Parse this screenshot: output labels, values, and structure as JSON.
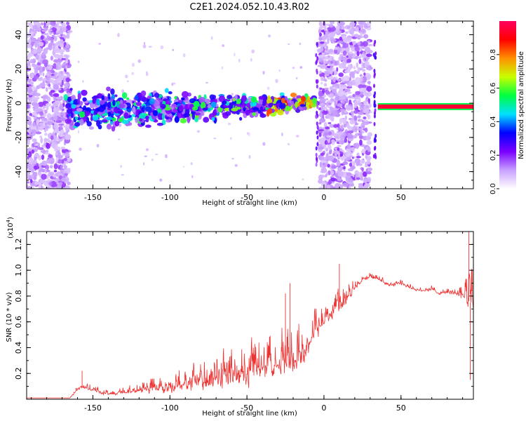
{
  "title": "C2E1.2024.052.10.43.R02",
  "chart_data": [
    {
      "type": "heatmap",
      "xlabel": "Height of straight line (km)",
      "ylabel": "Frequency (Hz)",
      "xlim": [
        -193,
        97
      ],
      "ylim": [
        -50,
        48
      ],
      "xticks": [
        "-150",
        "-100",
        "-50",
        "0",
        "50"
      ],
      "xtick_values": [
        -150,
        -100,
        -50,
        0,
        50
      ],
      "yticks": [
        "-40",
        "-20",
        "0",
        "20",
        "40"
      ],
      "ytick_values": [
        -40,
        -20,
        0,
        20,
        40
      ],
      "colorbar": {
        "label": "Normalized spectral amplitude",
        "range": [
          0,
          1
        ],
        "ticks": [
          "0.0",
          "0.2",
          "0.4",
          "0.6",
          "0.8"
        ],
        "tick_values": [
          0.0,
          0.2,
          0.4,
          0.6,
          0.8
        ],
        "colormap": [
          "#ffffff",
          "#c8a0ff",
          "#7a00ff",
          "#0000ff",
          "#00e0ff",
          "#00ff40",
          "#c8ff00",
          "#ff9000",
          "#ff0000",
          "#ff0060"
        ]
      },
      "features": {
        "noise_blocks_km": [
          [
            -193,
            -165
          ],
          [
            -3,
            30
          ]
        ],
        "signal_band": {
          "x_km": [
            -168,
            -5
          ],
          "center_hz_at_start": -5,
          "center_hz_at_end": 0,
          "halfwidth_hz_at_start": 10,
          "halfwidth_hz_at_end": 3
        },
        "strong_line": {
          "x_km": [
            35,
            97
          ],
          "freq_hz": -2,
          "peak_amplitude": 0.95
        }
      }
    },
    {
      "type": "line",
      "xlabel": "Height of straight line (km)",
      "ylabel": "SNR (10 * v/v)",
      "y_multiplier": "(x10⁴)",
      "y_exponent": "4",
      "xlim": [
        -193,
        97
      ],
      "ylim": [
        0,
        1.3
      ],
      "xticks": [
        "-150",
        "-100",
        "-50",
        "0",
        "50"
      ],
      "xtick_values": [
        -150,
        -100,
        -50,
        0,
        50
      ],
      "yticks": [
        "0.2",
        "0.4",
        "0.6",
        "0.8",
        "1.0",
        "1.2"
      ],
      "ytick_values": [
        0.2,
        0.4,
        0.6,
        0.8,
        1.0,
        1.2
      ],
      "color": "#ee3333",
      "envelope": {
        "x": [
          -193,
          -165,
          -158,
          -150,
          -140,
          -130,
          -120,
          -110,
          -100,
          -90,
          -80,
          -70,
          -60,
          -50,
          -40,
          -30,
          -20,
          -15,
          -10,
          -5,
          0,
          5,
          10,
          15,
          20,
          25,
          30,
          35,
          40,
          45,
          50,
          55,
          60,
          65,
          70,
          75,
          80,
          85,
          90,
          95,
          97
        ],
        "base": [
          0.01,
          0.01,
          0.1,
          0.07,
          0.04,
          0.05,
          0.07,
          0.09,
          0.1,
          0.12,
          0.14,
          0.15,
          0.18,
          0.2,
          0.24,
          0.27,
          0.3,
          0.34,
          0.42,
          0.52,
          0.6,
          0.65,
          0.7,
          0.78,
          0.86,
          0.93,
          0.95,
          0.93,
          0.9,
          0.88,
          0.9,
          0.87,
          0.85,
          0.84,
          0.85,
          0.82,
          0.83,
          0.82,
          0.8,
          0.75,
          0.7
        ],
        "spread": [
          0.0,
          0.0,
          0.07,
          0.06,
          0.04,
          0.06,
          0.1,
          0.14,
          0.18,
          0.22,
          0.26,
          0.3,
          0.32,
          0.35,
          0.38,
          0.4,
          0.4,
          0.38,
          0.32,
          0.28,
          0.2,
          0.18,
          0.25,
          0.18,
          0.1,
          0.06,
          0.05,
          0.05,
          0.04,
          0.04,
          0.05,
          0.04,
          0.04,
          0.04,
          0.04,
          0.04,
          0.05,
          0.05,
          0.15,
          0.45,
          0.4
        ]
      },
      "peaks": [
        {
          "x": -157,
          "y": 0.22
        },
        {
          "x": -22,
          "y": 0.9
        },
        {
          "x": -25,
          "y": 0.82
        },
        {
          "x": 10,
          "y": 1.05
        },
        {
          "x": 94,
          "y": 1.3
        },
        {
          "x": 95,
          "y": 0.15
        }
      ]
    }
  ]
}
